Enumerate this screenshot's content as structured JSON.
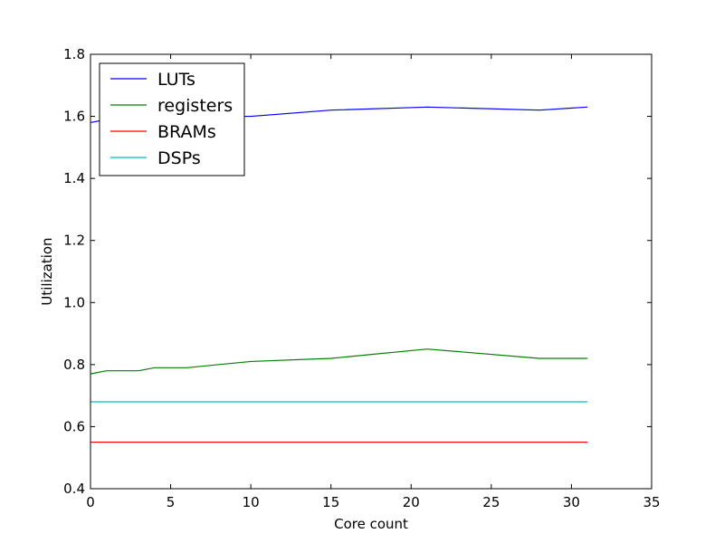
{
  "chart_data": {
    "type": "line",
    "xlabel": "Core count",
    "ylabel": "Utilization",
    "xlim": [
      0,
      35
    ],
    "ylim": [
      0.4,
      1.8
    ],
    "xticks": [
      "0",
      "5",
      "10",
      "15",
      "20",
      "25",
      "30",
      "35"
    ],
    "yticks": [
      "0.4",
      "0.6",
      "0.8",
      "1.0",
      "1.2",
      "1.4",
      "1.6",
      "1.8"
    ],
    "grid": false,
    "legend_position": "top-left",
    "series": [
      {
        "name": "LUTs",
        "color": "#0000ff",
        "x": [
          0,
          1,
          2,
          3,
          4,
          6,
          10,
          15,
          21,
          28,
          31
        ],
        "y": [
          1.58,
          1.59,
          1.59,
          1.59,
          1.6,
          1.6,
          1.6,
          1.62,
          1.63,
          1.62,
          1.63
        ]
      },
      {
        "name": "registers",
        "color": "#008000",
        "x": [
          0,
          1,
          2,
          3,
          4,
          6,
          10,
          15,
          21,
          28,
          31
        ],
        "y": [
          0.77,
          0.78,
          0.78,
          0.78,
          0.79,
          0.79,
          0.81,
          0.82,
          0.85,
          0.82,
          0.82
        ]
      },
      {
        "name": "BRAMs",
        "color": "#ff0000",
        "x": [
          0,
          31
        ],
        "y": [
          0.55,
          0.55
        ]
      },
      {
        "name": "DSPs",
        "color": "#00bfbf",
        "x": [
          0,
          31
        ],
        "y": [
          0.68,
          0.68
        ]
      }
    ]
  }
}
